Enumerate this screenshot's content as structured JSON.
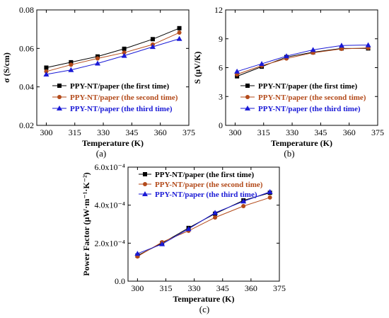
{
  "colors": {
    "first": "#000000",
    "second": "#b34a1a",
    "third": "#1a1ad6"
  },
  "chart_data": [
    {
      "panel": "(a)",
      "type": "line",
      "xlabel": "Temperature (K)",
      "ylabel": "σ (S/cm)",
      "xlim": [
        295,
        375
      ],
      "ylim": [
        0.02,
        0.08
      ],
      "xticks": [
        300,
        315,
        330,
        345,
        360,
        375
      ],
      "xtick_labels": [
        "300",
        "315",
        "330",
        "345",
        "360",
        "375"
      ],
      "yticks": [
        0.02,
        0.04,
        0.06,
        0.08
      ],
      "ytick_labels": [
        "0.02",
        "0.04",
        "0.06",
        "0.08"
      ],
      "legend_position": "bottom-right",
      "x": [
        300,
        313,
        327,
        341,
        356,
        370
      ],
      "series": [
        {
          "name": "PPY-NT/paper (the first time)",
          "marker": "square",
          "color": "#000000",
          "values": [
            0.05,
            0.0528,
            0.0558,
            0.0598,
            0.0648,
            0.0705
          ]
        },
        {
          "name": "PPY-NT/paper (the second time)",
          "marker": "circle",
          "color": "#b34a1a",
          "values": [
            0.048,
            0.0515,
            0.0548,
            0.0578,
            0.062,
            0.0682
          ]
        },
        {
          "name": "PPY-NT/paper (the third time)",
          "marker": "triangle",
          "color": "#1a1ad6",
          "values": [
            0.0465,
            0.0488,
            0.0522,
            0.0562,
            0.0608,
            0.065
          ]
        }
      ]
    },
    {
      "panel": "(b)",
      "type": "line",
      "xlabel": "Temperature (K)",
      "ylabel": "S (μV/K)",
      "xlim": [
        295,
        375
      ],
      "ylim": [
        0,
        12
      ],
      "xticks": [
        300,
        315,
        330,
        345,
        360,
        375
      ],
      "xtick_labels": [
        "300",
        "315",
        "330",
        "345",
        "360",
        "375"
      ],
      "yticks": [
        0,
        3,
        6,
        9,
        12
      ],
      "ytick_labels": [
        "0",
        "3",
        "6",
        "9",
        "12"
      ],
      "legend_position": "bottom-right",
      "x": [
        301,
        314,
        327,
        341,
        356,
        370
      ],
      "series": [
        {
          "name": "PPY-NT/paper (the first time)",
          "marker": "square",
          "color": "#000000",
          "values": [
            5.1,
            6.1,
            7.1,
            7.6,
            8.0,
            8.0
          ]
        },
        {
          "name": "PPY-NT/paper (the second time)",
          "marker": "circle",
          "color": "#b34a1a",
          "values": [
            5.3,
            6.2,
            6.95,
            7.55,
            7.95,
            8.05
          ]
        },
        {
          "name": "PPY-NT/paper (the third time)",
          "marker": "triangle",
          "color": "#1a1ad6",
          "values": [
            5.6,
            6.4,
            7.2,
            7.85,
            8.3,
            8.35
          ]
        }
      ]
    },
    {
      "panel": "(c)",
      "type": "line",
      "xlabel": "Temperature (K)",
      "ylabel": "Power Factor (μW·m⁻¹·K⁻²)",
      "xlim": [
        295,
        375
      ],
      "ylim": [
        0,
        0.0006
      ],
      "xticks": [
        300,
        315,
        330,
        345,
        360,
        375
      ],
      "xtick_labels": [
        "300",
        "315",
        "330",
        "345",
        "360",
        "375"
      ],
      "yticks": [
        0,
        0.0002,
        0.0004,
        0.0006
      ],
      "ytick_labels": [
        "0.0",
        "2.0x10⁻⁴",
        "4.0x10⁻⁴",
        "6.0x10⁻⁴"
      ],
      "legend_position": "top-left",
      "x": [
        300,
        313,
        327,
        341,
        356,
        370
      ],
      "series": [
        {
          "name": "PPY-NT/paper (the first time)",
          "marker": "square",
          "color": "#000000",
          "values": [
            0.000135,
            0.0002,
            0.00028,
            0.000355,
            0.000425,
            0.000465
          ]
        },
        {
          "name": "PPY-NT/paper (the second time)",
          "marker": "circle",
          "color": "#b34a1a",
          "values": [
            0.00013,
            0.000205,
            0.000265,
            0.000335,
            0.000395,
            0.00044
          ]
        },
        {
          "name": "PPY-NT/paper (the third time)",
          "marker": "triangle",
          "color": "#1a1ad6",
          "values": [
            0.000145,
            0.000195,
            0.000275,
            0.00036,
            0.00042,
            0.00047
          ]
        }
      ]
    }
  ]
}
